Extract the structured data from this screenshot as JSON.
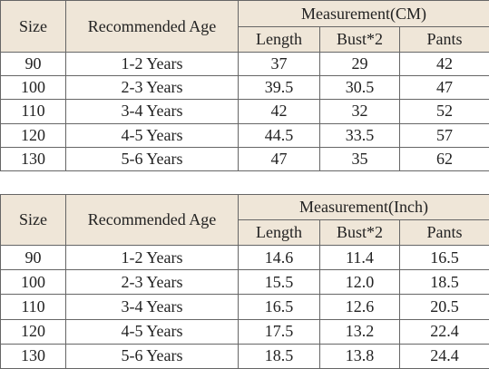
{
  "tables": [
    {
      "headers": {
        "size": "Size",
        "age": "Recommended Age",
        "group": "Measurement(CM)",
        "columns": [
          "Length",
          "Bust*2",
          "Pants"
        ]
      },
      "rows": [
        [
          "90",
          "1-2 Years",
          "37",
          "29",
          "42"
        ],
        [
          "100",
          "2-3 Years",
          "39.5",
          "30.5",
          "47"
        ],
        [
          "110",
          "3-4 Years",
          "42",
          "32",
          "52"
        ],
        [
          "120",
          "4-5 Years",
          "44.5",
          "33.5",
          "57"
        ],
        [
          "130",
          "5-6 Years",
          "47",
          "35",
          "62"
        ]
      ]
    },
    {
      "headers": {
        "size": "Size",
        "age": "Recommended Age",
        "group": "Measurement(Inch)",
        "columns": [
          "Length",
          "Bust*2",
          "Pants"
        ]
      },
      "rows": [
        [
          "90",
          "1-2 Years",
          "14.6",
          "11.4",
          "16.5"
        ],
        [
          "100",
          "2-3 Years",
          "15.5",
          "12.0",
          "18.5"
        ],
        [
          "110",
          "3-4 Years",
          "16.5",
          "12.6",
          "20.5"
        ],
        [
          "120",
          "4-5 Years",
          "17.5",
          "13.2",
          "22.4"
        ],
        [
          "130",
          "5-6 Years",
          "18.5",
          "13.8",
          "24.4"
        ]
      ]
    }
  ]
}
